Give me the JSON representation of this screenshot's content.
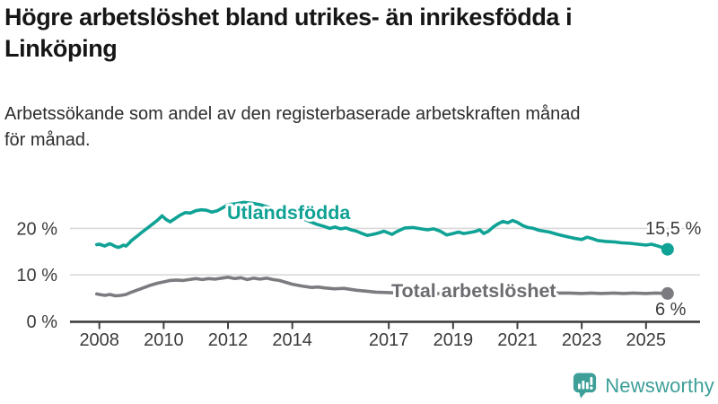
{
  "header": {
    "title_lines": [
      "Högre arbetslöshet bland utrikes- än inrikesfödda i",
      "Linköping"
    ],
    "subtitle_lines": [
      "Arbetssökande som andel av den registerbaserade arbetskraften månad",
      "för månad."
    ]
  },
  "footer": {
    "brand": "Newsworthy",
    "brand_color": "#3d9f98",
    "logo_icon": "speech-bubble-bar-chart-with-exclamation"
  },
  "chart_data": {
    "type": "line",
    "title": "Högre arbetslöshet bland utrikes- än inrikesfödda i Linköping",
    "subtitle": "Arbetssökande som andel av den registerbaserade arbetskraften månad för månad.",
    "xlabel": "",
    "ylabel": "",
    "x_unit": "year (monthly series)",
    "xlim": [
      2007.1,
      2026.7
    ],
    "ylim": [
      0,
      26
    ],
    "grid": "horizontal gridlines at 10 % and 20 %, baseline axis at 0 %",
    "legend_position": "inline labels on lines, end-value labels at right",
    "grid_color": "#d9d9d9",
    "axis_color": "#3f3f3f",
    "axis_text_color": "#3b3b3b",
    "value_label_color": "#3b3b3b",
    "xticks": [
      2008,
      2010,
      2012,
      2014,
      2017,
      2019,
      2021,
      2023,
      2025
    ],
    "yticks": [
      {
        "value": 0,
        "label": "0 %"
      },
      {
        "value": 10,
        "label": "10 %"
      },
      {
        "value": 20,
        "label": "20 %"
      }
    ],
    "series": [
      {
        "id": "utlandsfodda",
        "name": "Utlandsfödda",
        "color": "#0fa295",
        "label_color": "#0fa295",
        "end_label": "15,5 %",
        "end_value": 15.5,
        "points": [
          [
            2007.92,
            16.5
          ],
          [
            2008,
            16.6
          ],
          [
            2008.08,
            16.4
          ],
          [
            2008.17,
            16.2
          ],
          [
            2008.25,
            16.5
          ],
          [
            2008.33,
            16.7
          ],
          [
            2008.42,
            16.4
          ],
          [
            2008.5,
            16.1
          ],
          [
            2008.58,
            15.9
          ],
          [
            2008.67,
            16.1
          ],
          [
            2008.75,
            16.4
          ],
          [
            2008.83,
            16.2
          ],
          [
            2008.92,
            16.8
          ],
          [
            2009,
            17.4
          ],
          [
            2009.17,
            18.3
          ],
          [
            2009.33,
            19.2
          ],
          [
            2009.5,
            20.1
          ],
          [
            2009.67,
            21.0
          ],
          [
            2009.83,
            21.9
          ],
          [
            2009.95,
            22.7
          ],
          [
            2010.08,
            21.9
          ],
          [
            2010.2,
            21.4
          ],
          [
            2010.33,
            22.0
          ],
          [
            2010.5,
            22.8
          ],
          [
            2010.67,
            23.4
          ],
          [
            2010.83,
            23.3
          ],
          [
            2011,
            23.8
          ],
          [
            2011.17,
            24.0
          ],
          [
            2011.33,
            23.9
          ],
          [
            2011.5,
            23.5
          ],
          [
            2011.67,
            23.8
          ],
          [
            2011.83,
            24.4
          ],
          [
            2012,
            25.1
          ],
          [
            2012.25,
            25.3
          ],
          [
            2012.5,
            25.6
          ],
          [
            2012.75,
            25.4
          ],
          [
            2013,
            25.1
          ],
          [
            2013.25,
            24.6
          ],
          [
            2013.5,
            24.0
          ],
          [
            2013.75,
            23.5
          ],
          [
            2014,
            23.0
          ],
          [
            2014.25,
            22.3
          ],
          [
            2014.5,
            21.6
          ],
          [
            2014.75,
            20.9
          ],
          [
            2015,
            20.4
          ],
          [
            2015.17,
            20.0
          ],
          [
            2015.33,
            20.3
          ],
          [
            2015.5,
            19.9
          ],
          [
            2015.67,
            20.1
          ],
          [
            2015.83,
            19.7
          ],
          [
            2016,
            19.4
          ],
          [
            2016.17,
            18.9
          ],
          [
            2016.33,
            18.5
          ],
          [
            2016.5,
            18.7
          ],
          [
            2016.67,
            19.0
          ],
          [
            2016.85,
            19.4
          ],
          [
            2017.1,
            18.7
          ],
          [
            2017.25,
            19.3
          ],
          [
            2017.5,
            20.1
          ],
          [
            2017.75,
            20.2
          ],
          [
            2018,
            19.9
          ],
          [
            2018.2,
            19.7
          ],
          [
            2018.4,
            19.9
          ],
          [
            2018.6,
            19.4
          ],
          [
            2018.8,
            18.6
          ],
          [
            2019,
            18.9
          ],
          [
            2019.17,
            19.2
          ],
          [
            2019.33,
            18.9
          ],
          [
            2019.5,
            19.1
          ],
          [
            2019.67,
            19.3
          ],
          [
            2019.83,
            19.7
          ],
          [
            2019.95,
            18.9
          ],
          [
            2020.1,
            19.4
          ],
          [
            2020.25,
            20.3
          ],
          [
            2020.4,
            21.0
          ],
          [
            2020.55,
            21.5
          ],
          [
            2020.7,
            21.2
          ],
          [
            2020.85,
            21.7
          ],
          [
            2021,
            21.3
          ],
          [
            2021.17,
            20.6
          ],
          [
            2021.33,
            20.2
          ],
          [
            2021.5,
            20.0
          ],
          [
            2021.67,
            19.6
          ],
          [
            2021.83,
            19.4
          ],
          [
            2022,
            19.2
          ],
          [
            2022.25,
            18.7
          ],
          [
            2022.5,
            18.3
          ],
          [
            2022.75,
            17.9
          ],
          [
            2023,
            17.6
          ],
          [
            2023.17,
            18.1
          ],
          [
            2023.33,
            17.8
          ],
          [
            2023.5,
            17.4
          ],
          [
            2023.75,
            17.2
          ],
          [
            2024,
            17.1
          ],
          [
            2024.25,
            16.9
          ],
          [
            2024.5,
            16.8
          ],
          [
            2024.75,
            16.6
          ],
          [
            2025,
            16.4
          ],
          [
            2025.17,
            16.6
          ],
          [
            2025.33,
            16.3
          ],
          [
            2025.5,
            15.9
          ],
          [
            2025.67,
            15.5
          ]
        ]
      },
      {
        "id": "total-arbetsloshet",
        "name": "Total arbetslöshet",
        "color": "#7c7c80",
        "label_color": "#6b6b70",
        "end_label": "6 %",
        "end_value": 6.0,
        "points": [
          [
            2007.92,
            5.9
          ],
          [
            2008,
            5.8
          ],
          [
            2008.17,
            5.6
          ],
          [
            2008.33,
            5.8
          ],
          [
            2008.5,
            5.5
          ],
          [
            2008.67,
            5.6
          ],
          [
            2008.83,
            5.8
          ],
          [
            2009,
            6.3
          ],
          [
            2009.2,
            6.8
          ],
          [
            2009.4,
            7.3
          ],
          [
            2009.6,
            7.8
          ],
          [
            2009.8,
            8.2
          ],
          [
            2010,
            8.5
          ],
          [
            2010.2,
            8.8
          ],
          [
            2010.4,
            8.9
          ],
          [
            2010.6,
            8.8
          ],
          [
            2010.8,
            9.0
          ],
          [
            2011,
            9.2
          ],
          [
            2011.2,
            9.0
          ],
          [
            2011.4,
            9.2
          ],
          [
            2011.6,
            9.1
          ],
          [
            2011.8,
            9.3
          ],
          [
            2012,
            9.5
          ],
          [
            2012.2,
            9.2
          ],
          [
            2012.4,
            9.4
          ],
          [
            2012.6,
            9.0
          ],
          [
            2012.8,
            9.3
          ],
          [
            2013,
            9.1
          ],
          [
            2013.2,
            9.3
          ],
          [
            2013.4,
            9.0
          ],
          [
            2013.6,
            8.8
          ],
          [
            2013.8,
            8.4
          ],
          [
            2014,
            8.0
          ],
          [
            2014.3,
            7.6
          ],
          [
            2014.6,
            7.3
          ],
          [
            2014.8,
            7.4
          ],
          [
            2015,
            7.2
          ],
          [
            2015.3,
            7.0
          ],
          [
            2015.6,
            7.1
          ],
          [
            2016,
            6.7
          ],
          [
            2016.3,
            6.5
          ],
          [
            2016.6,
            6.3
          ],
          [
            2017,
            6.2
          ],
          [
            2017.3,
            6.1
          ],
          [
            2017.6,
            6.2
          ],
          [
            2018,
            6.0
          ],
          [
            2018.3,
            5.9
          ],
          [
            2018.6,
            6.0
          ],
          [
            2019,
            6.0
          ],
          [
            2019.3,
            6.1
          ],
          [
            2019.6,
            6.2
          ],
          [
            2020,
            6.5
          ],
          [
            2020.3,
            7.0
          ],
          [
            2020.6,
            7.2
          ],
          [
            2020.8,
            7.1
          ],
          [
            2021,
            6.9
          ],
          [
            2021.3,
            6.6
          ],
          [
            2021.6,
            6.4
          ],
          [
            2022,
            6.2
          ],
          [
            2022.3,
            6.1
          ],
          [
            2022.6,
            6.1
          ],
          [
            2023,
            6.0
          ],
          [
            2023.3,
            6.1
          ],
          [
            2023.6,
            6.0
          ],
          [
            2024,
            6.1
          ],
          [
            2024.3,
            6.0
          ],
          [
            2024.6,
            6.1
          ],
          [
            2025,
            6.0
          ],
          [
            2025.3,
            6.1
          ],
          [
            2025.67,
            6.0
          ]
        ]
      }
    ]
  }
}
